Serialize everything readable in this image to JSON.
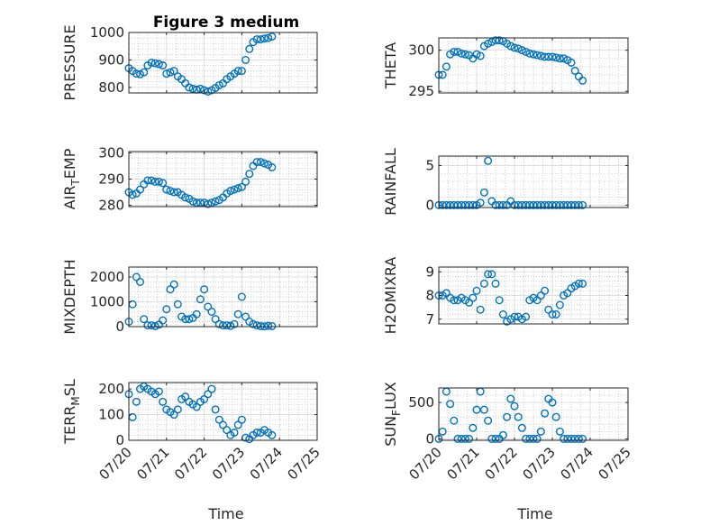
{
  "figure": {
    "title": "Figure 3 medium",
    "series_color": "#0072BD",
    "x_tick_labels": [
      "07/20",
      "07/21",
      "07/22",
      "07/23",
      "07/24",
      "07/25"
    ],
    "xlabel": "Time"
  },
  "chart_data": [
    {
      "type": "scatter",
      "ylabel": "PRESSURE",
      "ylim": [
        780,
        1000
      ],
      "yticks": [
        800,
        900,
        1000
      ],
      "x": [
        0,
        0.1,
        0.2,
        0.3,
        0.4,
        0.5,
        0.6,
        0.7,
        0.8,
        0.9,
        1,
        1.1,
        1.2,
        1.3,
        1.4,
        1.5,
        1.6,
        1.7,
        1.8,
        1.9,
        2,
        2.1,
        2.2,
        2.3,
        2.4,
        2.5,
        2.6,
        2.7,
        2.8,
        2.9,
        3,
        3.1,
        3.2,
        3.3,
        3.4,
        3.5,
        3.6,
        3.7,
        3.8
      ],
      "y": [
        870,
        860,
        850,
        848,
        855,
        880,
        890,
        888,
        885,
        880,
        850,
        855,
        860,
        840,
        830,
        815,
        800,
        795,
        792,
        795,
        790,
        785,
        790,
        798,
        808,
        815,
        830,
        840,
        850,
        860,
        860,
        900,
        940,
        965,
        975,
        975,
        978,
        980,
        985
      ]
    },
    {
      "type": "scatter",
      "ylabel": "THETA",
      "ylim": [
        294.8,
        301.5
      ],
      "yticks": [
        295,
        300
      ],
      "x": [
        0,
        0.1,
        0.2,
        0.3,
        0.4,
        0.5,
        0.6,
        0.7,
        0.8,
        0.9,
        1,
        1.1,
        1.2,
        1.3,
        1.4,
        1.5,
        1.6,
        1.7,
        1.8,
        1.9,
        2,
        2.1,
        2.2,
        2.3,
        2.4,
        2.5,
        2.6,
        2.7,
        2.8,
        2.9,
        3,
        3.1,
        3.2,
        3.3,
        3.4,
        3.5,
        3.6,
        3.7,
        3.8
      ],
      "y": [
        297,
        297,
        298,
        299.5,
        299.8,
        299.8,
        299.6,
        299.5,
        299.4,
        299.0,
        299.5,
        299.3,
        300.5,
        300.8,
        301.0,
        301.2,
        301.2,
        301.1,
        300.8,
        300.5,
        300.3,
        300.2,
        300.0,
        299.8,
        299.6,
        299.5,
        299.4,
        299.3,
        299.2,
        299.2,
        299.2,
        299.1,
        299.0,
        299.0,
        298.8,
        298.5,
        297.5,
        296.8,
        296.3
      ]
    },
    {
      "type": "scatter",
      "ylabel": "AIR_TEMP",
      "ylim": [
        279.5,
        300.5
      ],
      "yticks": [
        280,
        290,
        300
      ],
      "x": [
        0,
        0.1,
        0.2,
        0.3,
        0.4,
        0.5,
        0.6,
        0.7,
        0.8,
        0.9,
        1,
        1.1,
        1.2,
        1.3,
        1.4,
        1.5,
        1.6,
        1.7,
        1.8,
        1.9,
        2,
        2.1,
        2.2,
        2.3,
        2.4,
        2.5,
        2.6,
        2.7,
        2.8,
        2.9,
        3,
        3.1,
        3.2,
        3.3,
        3.4,
        3.5,
        3.6,
        3.7,
        3.8
      ],
      "y": [
        285,
        284,
        284.5,
        286,
        288,
        289.5,
        289.5,
        289,
        289,
        288.5,
        286,
        285.5,
        285,
        285,
        284,
        283,
        282.5,
        281.5,
        281,
        281,
        281,
        280.5,
        281,
        281.5,
        282,
        283,
        284.5,
        285.5,
        286,
        286.5,
        287,
        289,
        292,
        295,
        296.5,
        296.5,
        296,
        295.5,
        294.5
      ]
    },
    {
      "type": "scatter",
      "ylabel": "MIXDEPTH",
      "ylim": [
        0,
        2400
      ],
      "yticks": [
        0,
        1000,
        2000
      ],
      "x": [
        0,
        0.1,
        0.2,
        0.3,
        0.4,
        0.5,
        0.6,
        0.7,
        0.8,
        0.9,
        1,
        1.1,
        1.2,
        1.3,
        1.4,
        1.5,
        1.6,
        1.7,
        1.8,
        1.9,
        2,
        2.1,
        2.2,
        2.3,
        2.4,
        2.5,
        2.6,
        2.7,
        2.8,
        2.9,
        3,
        3.1,
        3.2,
        3.3,
        3.4,
        3.5,
        3.6,
        3.7,
        3.8
      ],
      "y": [
        200,
        900,
        2000,
        1800,
        300,
        50,
        50,
        20,
        80,
        250,
        700,
        1500,
        1700,
        900,
        400,
        300,
        300,
        350,
        500,
        1100,
        1500,
        800,
        600,
        300,
        100,
        50,
        50,
        30,
        100,
        500,
        1200,
        400,
        200,
        100,
        50,
        20,
        10,
        30,
        20
      ]
    },
    {
      "type": "scatter",
      "ylabel": "H2OMIXRA",
      "ylim": [
        6.8,
        9.2
      ],
      "yticks": [
        7,
        8,
        9
      ],
      "x": [
        0,
        0.1,
        0.2,
        0.3,
        0.4,
        0.5,
        0.6,
        0.7,
        0.8,
        0.9,
        1,
        1.1,
        1.2,
        1.3,
        1.4,
        1.5,
        1.6,
        1.7,
        1.8,
        1.9,
        2,
        2.1,
        2.2,
        2.3,
        2.4,
        2.5,
        2.6,
        2.7,
        2.8,
        2.9,
        3,
        3.1,
        3.2,
        3.3,
        3.4,
        3.5,
        3.6,
        3.7,
        3.8
      ],
      "y": [
        8.0,
        8.0,
        8.1,
        7.9,
        7.8,
        7.8,
        7.9,
        7.8,
        7.7,
        7.9,
        8.2,
        7.4,
        8.5,
        8.9,
        8.9,
        8.5,
        7.8,
        7.2,
        6.9,
        7.0,
        7.1,
        7.1,
        7.0,
        7.1,
        7.8,
        7.9,
        7.8,
        8.0,
        8.2,
        7.4,
        7.2,
        7.2,
        7.6,
        8.0,
        8.1,
        8.3,
        8.4,
        8.5,
        8.5
      ]
    },
    {
      "type": "scatter",
      "ylabel": "RAINFALL",
      "ylim": [
        -0.3,
        6.2
      ],
      "yticks": [
        0,
        5
      ],
      "x": [
        0,
        0.1,
        0.2,
        0.3,
        0.4,
        0.5,
        0.6,
        0.7,
        0.8,
        0.9,
        1,
        1.1,
        1.2,
        1.3,
        1.4,
        1.5,
        1.6,
        1.7,
        1.8,
        1.9,
        2,
        2.1,
        2.2,
        2.3,
        2.4,
        2.5,
        2.6,
        2.7,
        2.8,
        2.9,
        3,
        3.1,
        3.2,
        3.3,
        3.4,
        3.5,
        3.6,
        3.7,
        3.8
      ],
      "y": [
        0,
        0,
        0,
        0,
        0,
        0,
        0,
        0,
        0,
        0,
        0,
        0.3,
        1.6,
        5.6,
        0.5,
        0,
        0,
        0,
        0,
        0.5,
        0,
        0,
        0,
        0,
        0,
        0,
        0,
        0,
        0,
        0,
        0,
        0,
        0,
        0,
        0,
        0,
        0,
        0,
        0
      ]
    },
    {
      "type": "scatter",
      "ylabel": "TERR_MSL",
      "ylim": [
        0,
        225
      ],
      "yticks": [
        0,
        100,
        200
      ],
      "x": [
        0,
        0.1,
        0.2,
        0.3,
        0.4,
        0.5,
        0.6,
        0.7,
        0.8,
        0.9,
        1,
        1.1,
        1.2,
        1.3,
        1.4,
        1.5,
        1.6,
        1.7,
        1.8,
        1.9,
        2,
        2.1,
        2.2,
        2.3,
        2.4,
        2.5,
        2.6,
        2.7,
        2.8,
        2.9,
        3,
        3.1,
        3.2,
        3.3,
        3.4,
        3.5,
        3.6,
        3.7,
        3.8
      ],
      "y": [
        180,
        90,
        150,
        200,
        210,
        200,
        190,
        180,
        190,
        150,
        120,
        110,
        100,
        120,
        160,
        170,
        150,
        140,
        130,
        150,
        160,
        180,
        200,
        120,
        80,
        60,
        40,
        20,
        30,
        60,
        80,
        10,
        5,
        20,
        30,
        30,
        40,
        30,
        20
      ]
    },
    {
      "type": "scatter",
      "ylabel": "SUN_FLUX",
      "ylim": [
        -20,
        700
      ],
      "yticks": [
        0,
        500
      ],
      "x": [
        0,
        0.1,
        0.2,
        0.3,
        0.4,
        0.5,
        0.6,
        0.7,
        0.8,
        0.9,
        1,
        1.1,
        1.2,
        1.3,
        1.4,
        1.5,
        1.6,
        1.7,
        1.8,
        1.9,
        2,
        2.1,
        2.2,
        2.3,
        2.4,
        2.5,
        2.6,
        2.7,
        2.8,
        2.9,
        3,
        3.1,
        3.2,
        3.3,
        3.4,
        3.5,
        3.6,
        3.7,
        3.8
      ],
      "y": [
        0,
        100,
        650,
        480,
        250,
        0,
        0,
        0,
        0,
        150,
        400,
        650,
        400,
        250,
        0,
        0,
        0,
        50,
        300,
        550,
        450,
        300,
        150,
        0,
        0,
        0,
        0,
        100,
        350,
        550,
        500,
        300,
        100,
        0,
        0,
        0,
        0,
        0,
        0
      ]
    }
  ]
}
